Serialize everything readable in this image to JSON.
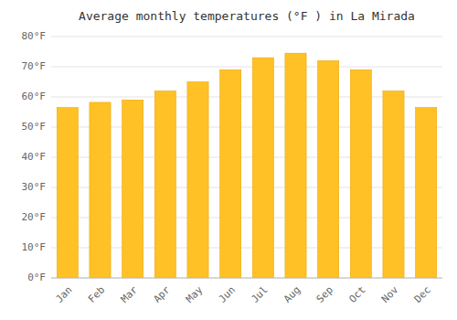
{
  "chart_data": {
    "type": "bar",
    "title": "Average monthly temperatures (°F ) in La Mirada",
    "categories": [
      "Jan",
      "Feb",
      "Mar",
      "Apr",
      "May",
      "Jun",
      "Jul",
      "Aug",
      "Sep",
      "Oct",
      "Nov",
      "Dec"
    ],
    "values": [
      56.5,
      58.2,
      59.0,
      62.0,
      65.0,
      69.0,
      73.0,
      74.5,
      72.0,
      69.0,
      62.0,
      56.5
    ],
    "color": "#FFC125",
    "ylim": [
      0,
      80
    ],
    "yticks": [
      {
        "value": 0,
        "label": "0°F"
      },
      {
        "value": 10,
        "label": "10°F"
      },
      {
        "value": 20,
        "label": "20°F"
      },
      {
        "value": 30,
        "label": "30°F"
      },
      {
        "value": 40,
        "label": "40°F"
      },
      {
        "value": 50,
        "label": "50°F"
      },
      {
        "value": 60,
        "label": "60°F"
      },
      {
        "value": 70,
        "label": "70°F"
      },
      {
        "value": 80,
        "label": "80°F"
      }
    ],
    "grid": true
  }
}
